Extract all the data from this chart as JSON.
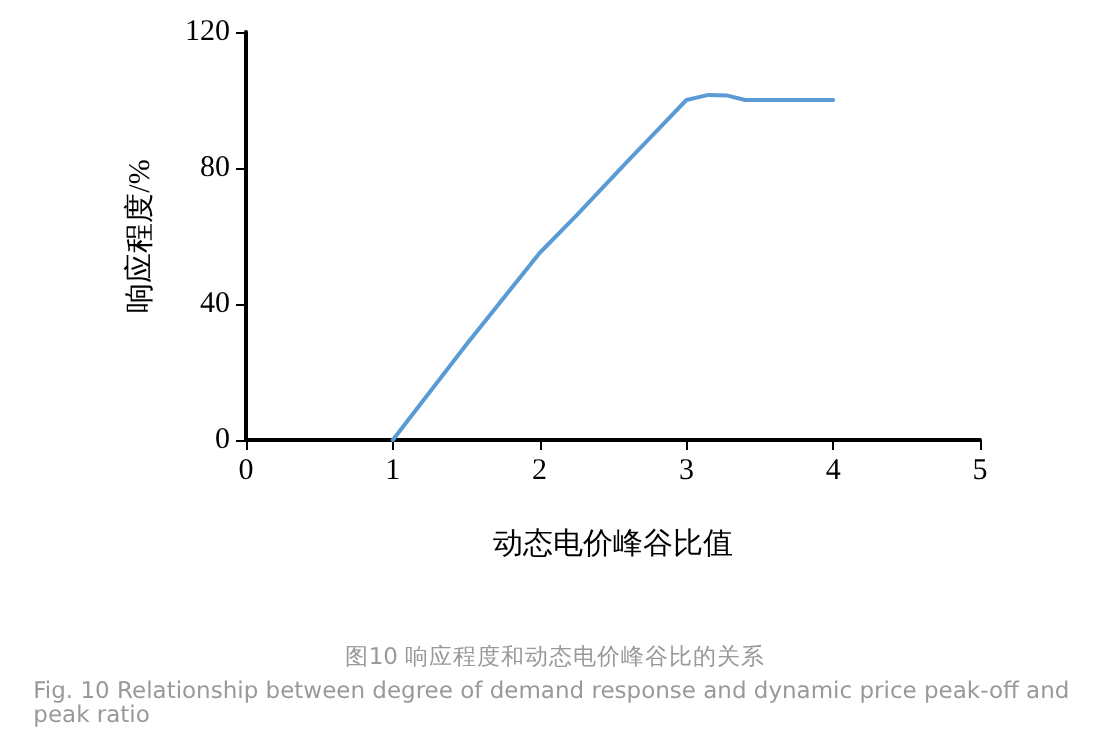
{
  "chart_data": {
    "type": "line",
    "xlabel": "动态电价峰谷比值",
    "ylabel": "响应程度/%",
    "annotations": [
      "图10 响应程度和动态电价峰谷比的关系",
      "Fig. 10 Relationship between degree of demand response and dynamic price peak-off and peak ratio"
    ],
    "series": [
      {
        "color": "#5b9bd5",
        "x": [
          1,
          1.5,
          2,
          2.25,
          2.6,
          2.8,
          3,
          3.15,
          3.28,
          3.4,
          4
        ],
        "values": [
          0,
          28,
          55,
          66,
          82,
          91,
          100,
          101.5,
          101.3,
          100,
          100
        ]
      }
    ],
    "xlim": [
      0,
      5
    ],
    "xticks": [
      0,
      1,
      2,
      3,
      4,
      5
    ],
    "ylim": [
      0,
      120
    ],
    "yticks": [
      0,
      40,
      80,
      120
    ],
    "grid": false,
    "marker": "none",
    "line_style": "solid"
  }
}
